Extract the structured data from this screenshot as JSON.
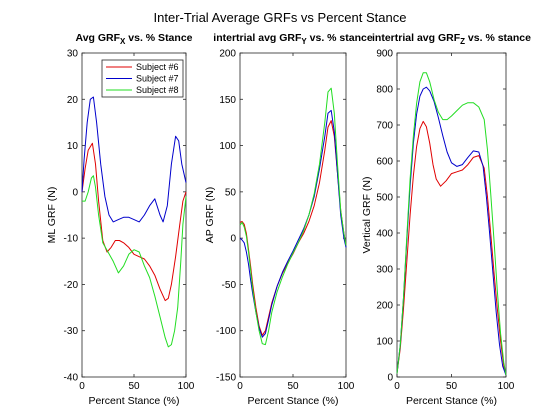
{
  "figure": {
    "suptitle": "Inter-Trial Average GRFs vs Percent Stance",
    "series_colors": [
      "#e00000",
      "#0000cc",
      "#22dd22"
    ]
  },
  "chart_data": [
    {
      "type": "line",
      "title_main": "Avg GRF",
      "title_sub": "X",
      "title_tail": " vs. % Stance",
      "xlabel": "Percent Stance (%)",
      "ylabel": "ML GRF (N)",
      "xlim": [
        0,
        100
      ],
      "ylim": [
        -40,
        30
      ],
      "xticks": [
        0,
        50,
        100
      ],
      "yticks": [
        -40,
        -30,
        -20,
        -10,
        0,
        10,
        20,
        30
      ],
      "grid": false,
      "legend": {
        "placement": "top-right",
        "entries": [
          "Subject #6",
          "Subject #7",
          "Subject #8"
        ]
      },
      "series": [
        {
          "name": "Subject #6",
          "x": [
            0,
            3,
            6,
            10,
            13,
            16,
            20,
            24,
            28,
            32,
            36,
            40,
            45,
            50,
            55,
            60,
            65,
            70,
            75,
            80,
            83,
            86,
            90,
            94,
            97,
            100
          ],
          "y": [
            0,
            5,
            9,
            10.5,
            6,
            -2,
            -10.5,
            -13,
            -12,
            -10.5,
            -10.5,
            -11,
            -12,
            -13.5,
            -14,
            -14.5,
            -16,
            -18,
            -21,
            -23.5,
            -23,
            -20,
            -14,
            -7,
            -2,
            0
          ]
        },
        {
          "name": "Subject #7",
          "x": [
            0,
            2,
            5,
            8,
            11,
            14,
            18,
            22,
            26,
            30,
            35,
            40,
            45,
            50,
            55,
            60,
            65,
            70,
            75,
            78,
            82,
            86,
            90,
            93,
            96,
            100
          ],
          "y": [
            0,
            7,
            15,
            20,
            20.5,
            15,
            6,
            -1,
            -5,
            -6.5,
            -6,
            -5.5,
            -5.5,
            -6,
            -6.5,
            -5,
            -3,
            -1.5,
            -5,
            -6.5,
            -3,
            6,
            12,
            11,
            6,
            2
          ]
        },
        {
          "name": "Subject #8",
          "x": [
            0,
            3,
            6,
            9,
            11,
            13,
            16,
            20,
            25,
            30,
            35,
            40,
            45,
            50,
            55,
            60,
            65,
            70,
            75,
            80,
            83,
            86,
            89,
            92,
            95,
            97,
            100
          ],
          "y": [
            -2,
            -2,
            0,
            3,
            3.5,
            1,
            -5,
            -11,
            -13,
            -15,
            -17.5,
            -16,
            -13.5,
            -12.5,
            -13,
            -16,
            -18.5,
            -22.5,
            -27,
            -31.5,
            -33.5,
            -33,
            -30,
            -25,
            -15,
            -7,
            -1
          ]
        }
      ]
    },
    {
      "type": "line",
      "title_main": "intertrial avg GRF",
      "title_sub": "Y",
      "title_tail": " vs. % stance",
      "xlabel": "Percent Stance (%)",
      "ylabel": "AP GRF (N)",
      "xlim": [
        0,
        100
      ],
      "ylim": [
        -150,
        200
      ],
      "xticks": [
        0,
        50,
        100
      ],
      "yticks": [
        -150,
        -100,
        -50,
        0,
        50,
        100,
        150,
        200
      ],
      "grid": false,
      "series": [
        {
          "name": "Subject #6",
          "x": [
            0,
            2,
            4,
            6,
            8,
            10,
            12,
            15,
            18,
            21,
            24,
            27,
            30,
            35,
            40,
            45,
            50,
            55,
            60,
            65,
            70,
            75,
            80,
            83,
            86,
            89,
            92,
            95,
            98,
            100
          ],
          "y": [
            17,
            18,
            15,
            5,
            -12,
            -30,
            -50,
            -75,
            -95,
            -105,
            -100,
            -85,
            -70,
            -52,
            -38,
            -27,
            -17,
            -5,
            5,
            18,
            35,
            60,
            95,
            120,
            127,
            110,
            70,
            30,
            5,
            -8
          ]
        },
        {
          "name": "Subject #7",
          "x": [
            0,
            2,
            4,
            6,
            8,
            10,
            12,
            15,
            18,
            21,
            24,
            27,
            30,
            35,
            40,
            45,
            50,
            55,
            60,
            65,
            70,
            75,
            80,
            83,
            86,
            89,
            92,
            95,
            98,
            100
          ],
          "y": [
            0,
            -2,
            -5,
            -15,
            -28,
            -45,
            -60,
            -80,
            -97,
            -107,
            -103,
            -88,
            -72,
            -52,
            -37,
            -25,
            -14,
            -2,
            10,
            25,
            45,
            75,
            110,
            135,
            138,
            115,
            70,
            25,
            0,
            -10
          ]
        },
        {
          "name": "Subject #8",
          "x": [
            0,
            2,
            4,
            6,
            8,
            10,
            12,
            15,
            18,
            21,
            24,
            27,
            30,
            35,
            40,
            45,
            50,
            55,
            60,
            65,
            70,
            75,
            80,
            83,
            86,
            89,
            92,
            95,
            98,
            100
          ],
          "y": [
            14,
            17,
            12,
            2,
            -15,
            -35,
            -55,
            -80,
            -100,
            -114,
            -115,
            -100,
            -80,
            -58,
            -42,
            -28,
            -16,
            -5,
            8,
            25,
            48,
            80,
            125,
            158,
            162,
            135,
            80,
            30,
            5,
            -8
          ]
        }
      ]
    },
    {
      "type": "line",
      "title_main": "intertrial avg GRF",
      "title_sub": "Z",
      "title_tail": " vs. % stance",
      "xlabel": "Percent Stance (%)",
      "ylabel": "Vertical GRF (N)",
      "xlim": [
        0,
        100
      ],
      "ylim": [
        0,
        900
      ],
      "xticks": [
        0,
        50,
        100
      ],
      "yticks": [
        0,
        100,
        200,
        300,
        400,
        500,
        600,
        700,
        800,
        900
      ],
      "grid": false,
      "series": [
        {
          "name": "Subject #6",
          "x": [
            0,
            3,
            6,
            9,
            12,
            15,
            18,
            21,
            24,
            27,
            30,
            33,
            36,
            40,
            45,
            50,
            55,
            60,
            65,
            70,
            75,
            80,
            83,
            86,
            89,
            92,
            95,
            98,
            100
          ],
          "y": [
            10,
            80,
            190,
            320,
            450,
            560,
            640,
            690,
            710,
            695,
            650,
            590,
            550,
            530,
            545,
            565,
            570,
            575,
            590,
            610,
            615,
            580,
            500,
            400,
            290,
            190,
            100,
            30,
            5
          ]
        },
        {
          "name": "Subject #7",
          "x": [
            0,
            3,
            6,
            9,
            12,
            15,
            18,
            21,
            24,
            27,
            30,
            34,
            38,
            42,
            46,
            50,
            55,
            60,
            65,
            70,
            75,
            79,
            82,
            85,
            88,
            91,
            94,
            97,
            100
          ],
          "y": [
            10,
            90,
            220,
            380,
            530,
            650,
            730,
            780,
            800,
            805,
            795,
            765,
            720,
            670,
            625,
            595,
            585,
            590,
            610,
            628,
            625,
            585,
            500,
            400,
            290,
            180,
            90,
            30,
            5
          ]
        },
        {
          "name": "Subject #8",
          "x": [
            0,
            3,
            6,
            9,
            12,
            15,
            18,
            21,
            24,
            27,
            30,
            34,
            38,
            42,
            46,
            50,
            55,
            60,
            65,
            70,
            75,
            80,
            83,
            86,
            89,
            92,
            95,
            98,
            100
          ],
          "y": [
            10,
            90,
            220,
            390,
            550,
            670,
            760,
            820,
            845,
            845,
            820,
            770,
            735,
            715,
            715,
            725,
            740,
            755,
            762,
            762,
            750,
            715,
            630,
            510,
            380,
            240,
            120,
            40,
            5
          ]
        }
      ]
    }
  ]
}
